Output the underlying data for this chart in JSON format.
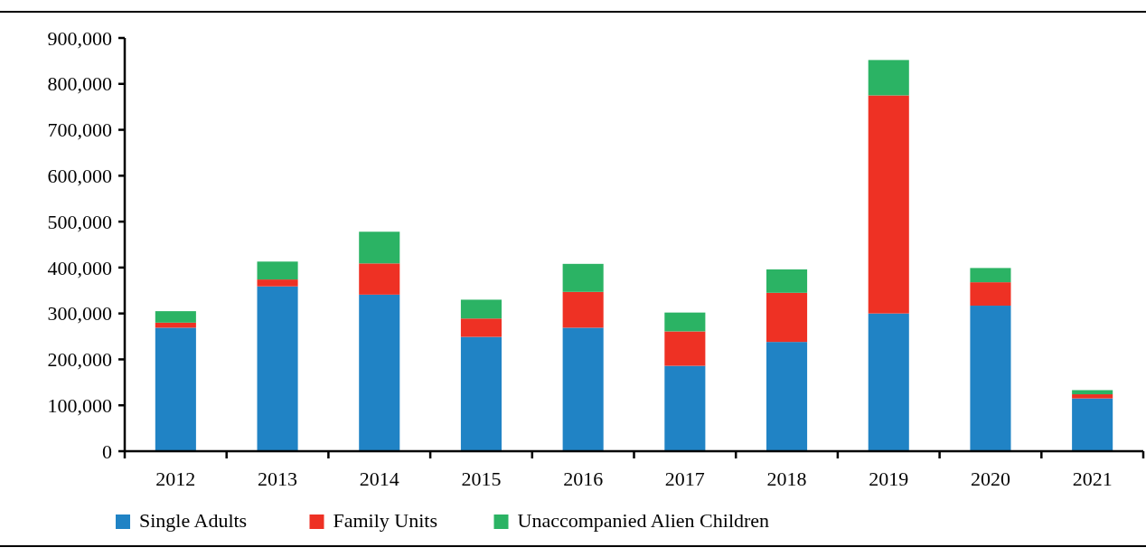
{
  "chart_data": {
    "type": "bar",
    "stacked": true,
    "categories": [
      "2012",
      "2013",
      "2014",
      "2015",
      "2016",
      "2017",
      "2018",
      "2019",
      "2020",
      "2021"
    ],
    "series": [
      {
        "name": "Single Adults",
        "color": "#2083c5",
        "values": [
          269000,
          359000,
          341000,
          249000,
          269000,
          186000,
          238000,
          300000,
          317000,
          115000
        ]
      },
      {
        "name": "Family Units",
        "color": "#ee3124",
        "values": [
          11000,
          15000,
          68000,
          40000,
          78000,
          75000,
          107000,
          475000,
          51000,
          9000
        ]
      },
      {
        "name": "Unaccompanied Alien Children",
        "color": "#2bb364",
        "values": [
          25000,
          39000,
          69000,
          41000,
          61000,
          41000,
          51000,
          77000,
          31000,
          9000
        ]
      }
    ],
    "ylim": [
      0,
      900000
    ],
    "yticks": [
      {
        "value": 0,
        "label": "0"
      },
      {
        "value": 100000,
        "label": "100,000"
      },
      {
        "value": 200000,
        "label": "200,000"
      },
      {
        "value": 300000,
        "label": "300,000"
      },
      {
        "value": 400000,
        "label": "400,000"
      },
      {
        "value": 500000,
        "label": "500,000"
      },
      {
        "value": 600000,
        "label": "600,000"
      },
      {
        "value": 700000,
        "label": "700,000"
      },
      {
        "value": 800000,
        "label": "800,000"
      },
      {
        "value": 900000,
        "label": "900,000"
      }
    ],
    "grid": false,
    "legend": "bottom left"
  }
}
